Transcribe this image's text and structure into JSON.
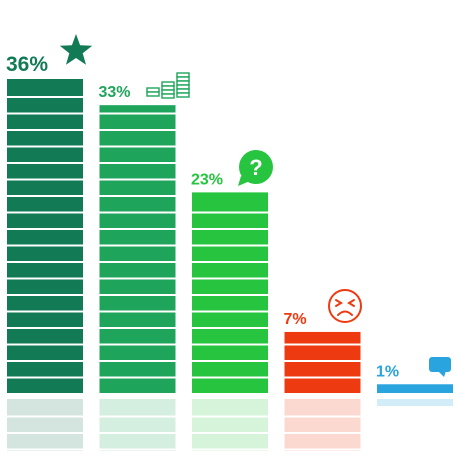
{
  "chart_data": {
    "type": "bar",
    "categories": [
      "",
      "",
      "",
      "",
      ""
    ],
    "values": [
      36,
      33,
      23,
      7,
      1
    ],
    "data_labels": [
      "36%",
      "33%",
      "23%",
      "7%",
      "1%"
    ],
    "colors": [
      "#127a55",
      "#1fa55b",
      "#27c43f",
      "#ee3a10",
      "#2aa4de"
    ],
    "reflection_colors": [
      "#d3e5de",
      "#d4eedf",
      "#d6f4da",
      "#fcd9d0",
      "#d2ecf8"
    ],
    "icons": [
      "star-icon",
      "money-stack-icon",
      "question-bubble-icon",
      "angry-face-icon",
      "speech-bubble-icon"
    ],
    "ylim": [
      0,
      36
    ],
    "grid": false,
    "legend": "none",
    "title": "",
    "xlabel": "",
    "ylabel": ""
  }
}
